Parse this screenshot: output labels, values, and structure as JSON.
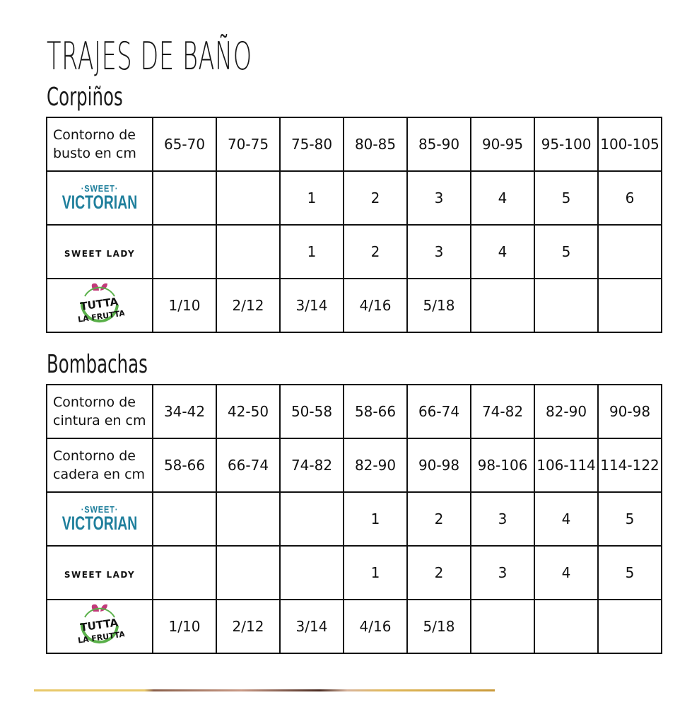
{
  "title": "TRAJES DE BAÑO",
  "brands": {
    "sweet_victorian_top": "·SWEET·",
    "sweet_victorian_bottom": "VICTORIAN",
    "sweet_lady": "SWEET LADY",
    "tutta_frutta": "TUTTA LA FRUTTA"
  },
  "brand_colors": {
    "sweet_victorian": "#1f7f9c",
    "tutta_leaf": "#c23a7a",
    "tutta_ring": "#5ab04a"
  },
  "corpinos": {
    "heading": "Corpiños",
    "header_label": "Contorno de busto en cm",
    "sizes": [
      "65-70",
      "70-75",
      "75-80",
      "80-85",
      "85-90",
      "90-95",
      "95-100",
      "100-105"
    ],
    "rows": [
      {
        "brand": "sweet_victorian",
        "values": [
          "",
          "",
          "1",
          "2",
          "3",
          "4",
          "5",
          "6"
        ]
      },
      {
        "brand": "sweet_lady",
        "values": [
          "",
          "",
          "1",
          "2",
          "3",
          "4",
          "5",
          ""
        ]
      },
      {
        "brand": "tutta_frutta",
        "values": [
          "1/10",
          "2/12",
          "3/14",
          "4/16",
          "5/18",
          "",
          "",
          ""
        ]
      }
    ]
  },
  "bombachas": {
    "heading": "Bombachas",
    "waist_label": "Contorno de cintura en cm",
    "waist": [
      "34-42",
      "42-50",
      "50-58",
      "58-66",
      "66-74",
      "74-82",
      "82-90",
      "90-98"
    ],
    "hip_label": "Contorno de cadera en cm",
    "hip": [
      "58-66",
      "66-74",
      "74-82",
      "82-90",
      "90-98",
      "98-106",
      "106-114",
      "114-122"
    ],
    "rows": [
      {
        "brand": "sweet_victorian",
        "values": [
          "",
          "",
          "",
          "1",
          "2",
          "3",
          "4",
          "5"
        ]
      },
      {
        "brand": "sweet_lady",
        "values": [
          "",
          "",
          "",
          "1",
          "2",
          "3",
          "4",
          "5"
        ]
      },
      {
        "brand": "tutta_frutta",
        "values": [
          "1/10",
          "2/12",
          "3/14",
          "4/16",
          "5/18",
          "",
          "",
          ""
        ]
      }
    ]
  }
}
